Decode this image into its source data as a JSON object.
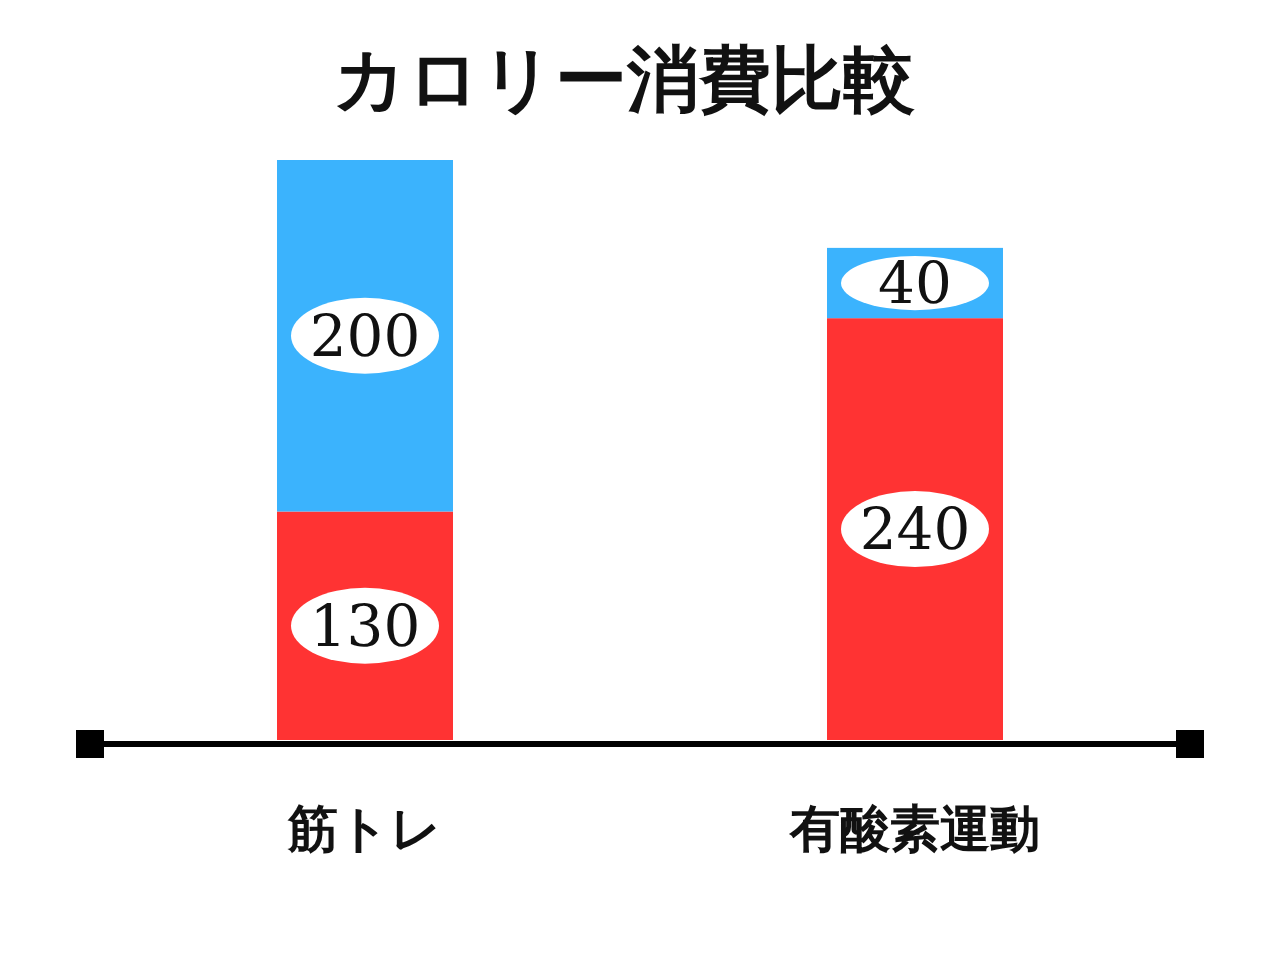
{
  "chart_data": {
    "type": "bar",
    "title": "カロリー消費比較",
    "categories": [
      "筋トレ",
      "有酸素運動"
    ],
    "stacked": true,
    "data_labels": true,
    "series": [
      {
        "color": "#ff3333",
        "values": [
          130,
          240
        ]
      },
      {
        "color": "#3bb3fd",
        "values": [
          200,
          40
        ]
      }
    ]
  }
}
